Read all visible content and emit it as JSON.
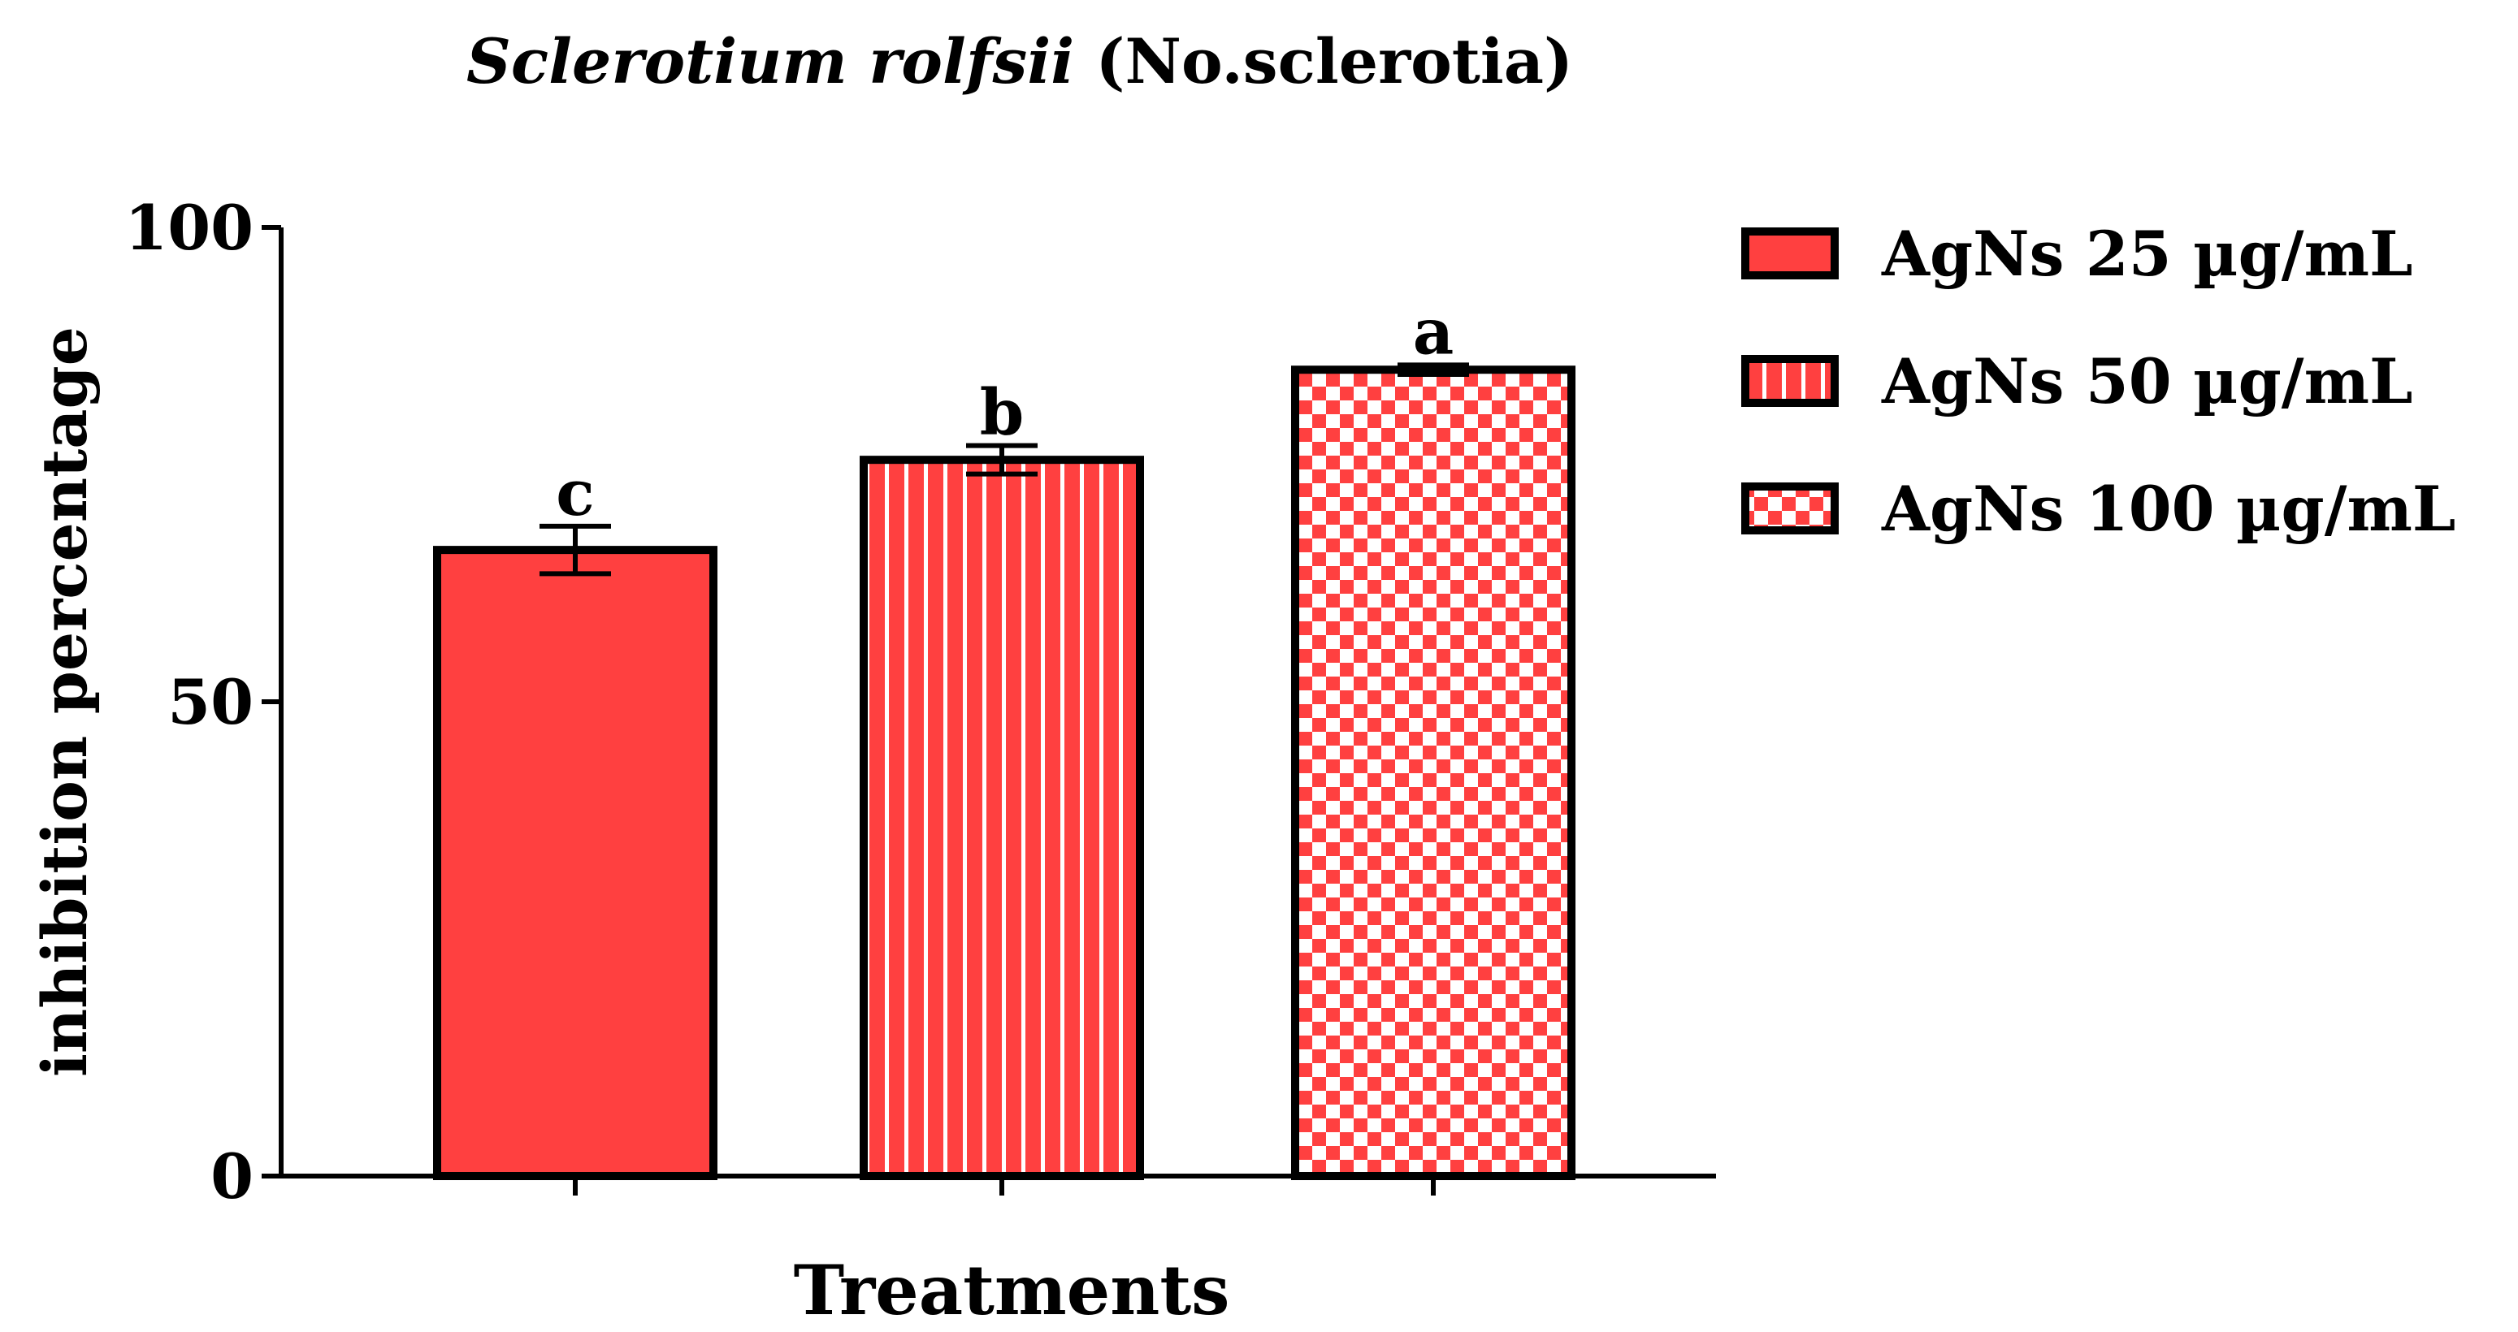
{
  "chart_data": {
    "type": "bar",
    "title_italic": "Sclerotium rolfsii",
    "title_plain": " (No.sclerotia)",
    "xlabel": "Treatments",
    "ylabel": "inhibition percentage",
    "ylim": [
      0,
      100
    ],
    "yticks": [
      0,
      50,
      100
    ],
    "categories": [
      "AgNs 25 µg/mL",
      "AgNs 50 µg/mL",
      "AgNs 100 µg/mL"
    ],
    "values": [
      66,
      75.5,
      85
    ],
    "errors": [
      2.5,
      1.5,
      0.5
    ],
    "significance_letters": [
      "c",
      "b",
      "a"
    ],
    "patterns": [
      "solid",
      "vertical-stripes",
      "checkerboard"
    ],
    "legend_position": "right",
    "grid": false
  },
  "colors": {
    "bar_fill": "#ff4040",
    "stroke": "#000000",
    "pattern_light": "#ffffff"
  }
}
